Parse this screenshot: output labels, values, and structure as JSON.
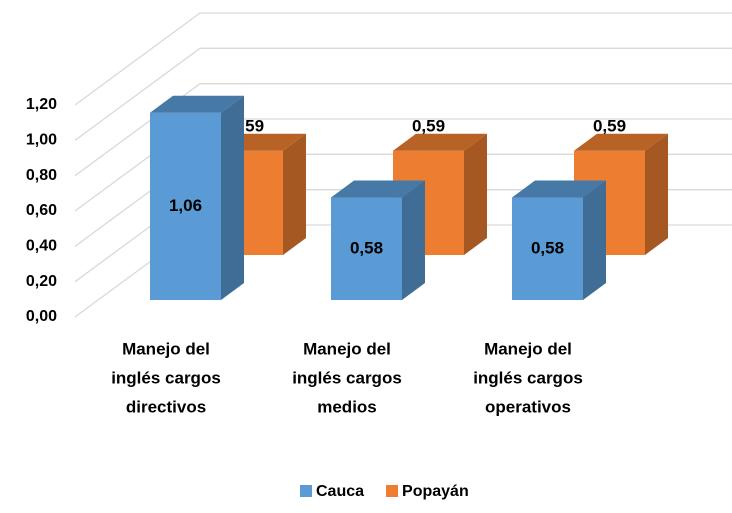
{
  "chart_data": {
    "type": "bar3d",
    "categories": [
      [
        "Manejo del",
        "inglés cargos",
        "directivos"
      ],
      [
        "Manejo del",
        "inglés cargos",
        "medios"
      ],
      [
        "Manejo del",
        "inglés cargos",
        "operativos"
      ]
    ],
    "series": [
      {
        "name": "Cauca",
        "color": "#5b9bd5",
        "values": [
          1.06,
          0.58,
          0.58
        ],
        "value_labels": [
          "1,06",
          "0,58",
          "0,58"
        ]
      },
      {
        "name": "Popayán",
        "color": "#ed7d31",
        "values": [
          0.59,
          0.59,
          0.59
        ],
        "value_labels": [
          "0,59",
          "0,59",
          "0,59"
        ]
      }
    ],
    "ylim": [
      0,
      1.2
    ],
    "yticks": [
      {
        "value": 0,
        "label": "0,00"
      },
      {
        "value": 0.2,
        "label": "0,20"
      },
      {
        "value": 0.4,
        "label": "0,40"
      },
      {
        "value": 0.6,
        "label": "0,60"
      },
      {
        "value": 0.8,
        "label": "0,80"
      },
      {
        "value": 1.0,
        "label": "1,00"
      },
      {
        "value": 1.2,
        "label": "1,20"
      }
    ],
    "grid": true
  }
}
